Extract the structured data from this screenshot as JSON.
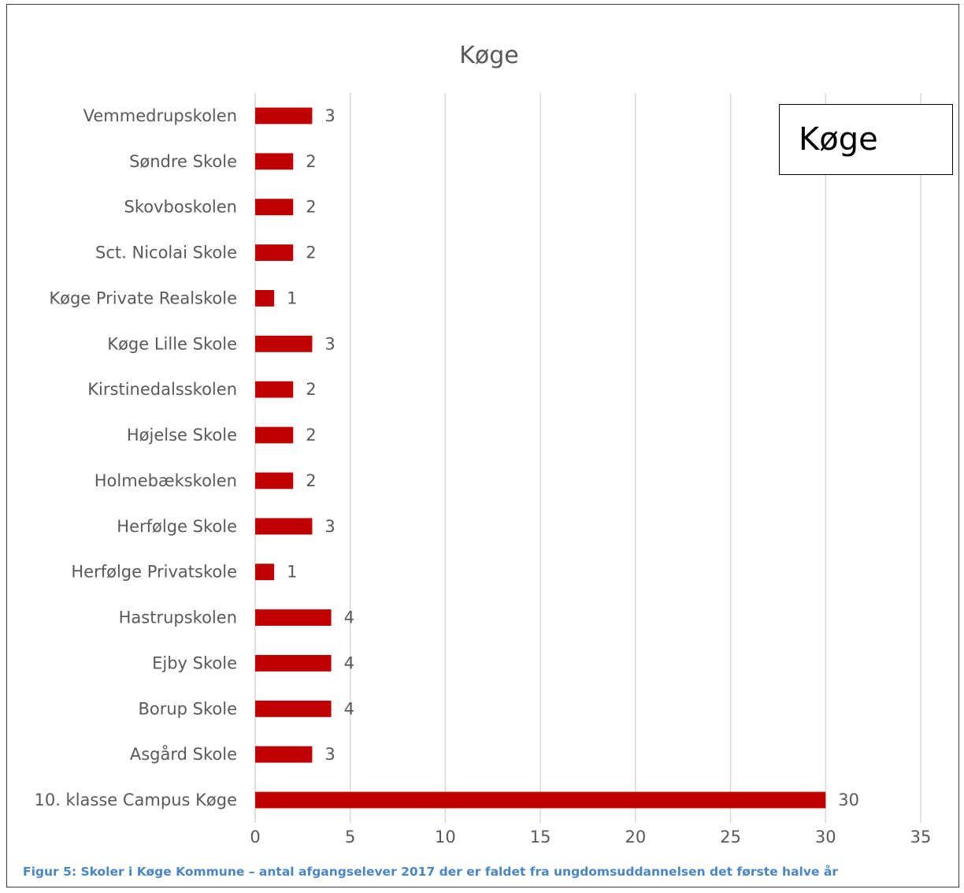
{
  "chart_data": {
    "type": "bar",
    "orientation": "horizontal",
    "title": "Køge",
    "categories": [
      "10. klasse Campus Køge",
      "Asgård Skole",
      "Borup Skole",
      "Ejby Skole",
      "Hastrupskolen",
      "Herfølge Privatskole",
      "Herfølge Skole",
      "Holmebækskolen",
      "Højelse Skole",
      "Kirstinedalsskolen",
      "Køge Lille Skole",
      "Køge Private Realskole",
      "Sct. Nicolai Skole",
      "Skovboskolen",
      "Søndre Skole",
      "Vemmedrupskolen"
    ],
    "values": [
      30,
      3,
      4,
      4,
      4,
      1,
      3,
      2,
      2,
      2,
      3,
      1,
      2,
      2,
      2,
      3
    ],
    "xlim": [
      0,
      35
    ],
    "xticks": [
      0,
      5,
      10,
      15,
      20,
      25,
      30,
      35
    ],
    "bar_color": "#c00000",
    "gridlines": true,
    "legend_text": "Køge"
  },
  "caption": "Figur 5: Skoler i Køge Kommune – antal afgangselever 2017 der er faldet fra ungdomsuddannelsen det første halve år"
}
